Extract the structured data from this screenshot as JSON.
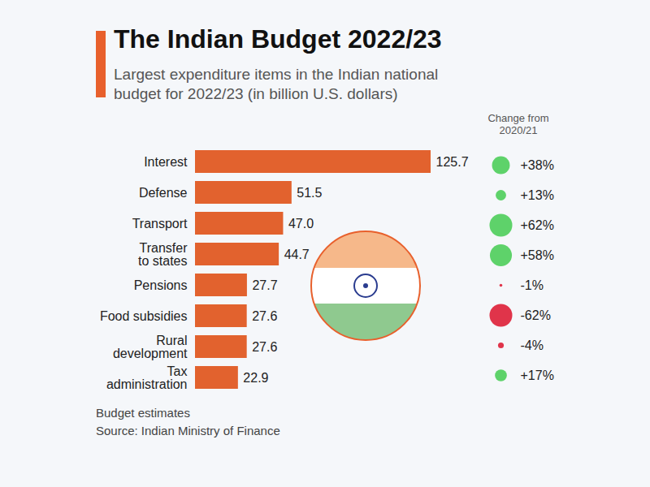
{
  "chart_data": {
    "type": "bar",
    "orientation": "horizontal",
    "title": "The Indian Budget 2022/23",
    "subtitle": "Largest expenditure items in the Indian national budget for 2022/23 (in billion U.S. dollars)",
    "categories": [
      "Interest",
      "Defense",
      "Transport",
      "Transfer to states",
      "Pensions",
      "Food subsidies",
      "Rural development",
      "Tax administration"
    ],
    "values": [
      125.7,
      51.5,
      47.0,
      44.7,
      27.7,
      27.6,
      27.6,
      22.9
    ],
    "value_labels": [
      "125.7",
      "51.5",
      "47.0",
      "44.7",
      "27.7",
      "27.6",
      "27.6",
      "22.9"
    ],
    "color": "#e2622e",
    "data_labels": true,
    "tick_labels": "y",
    "grid": false,
    "xlim": [
      0,
      125.7
    ],
    "change": {
      "name": "Change from 2020/21",
      "values": [
        38,
        13,
        62,
        58,
        -1,
        -62,
        -4,
        17
      ],
      "value_labels": [
        "+38%",
        "+13%",
        "+62%",
        "+58%",
        "-1%",
        "-62%",
        "-4%",
        "+17%"
      ],
      "colors": [
        "#5ed26a",
        "#5ed26a",
        "#5ed26a",
        "#5ed26a",
        "#e0344a",
        "#e0344a",
        "#e0344a",
        "#5ed26a"
      ]
    },
    "notes": [
      "Budget estimates",
      "Source: Indian Ministry of Finance"
    ]
  }
}
